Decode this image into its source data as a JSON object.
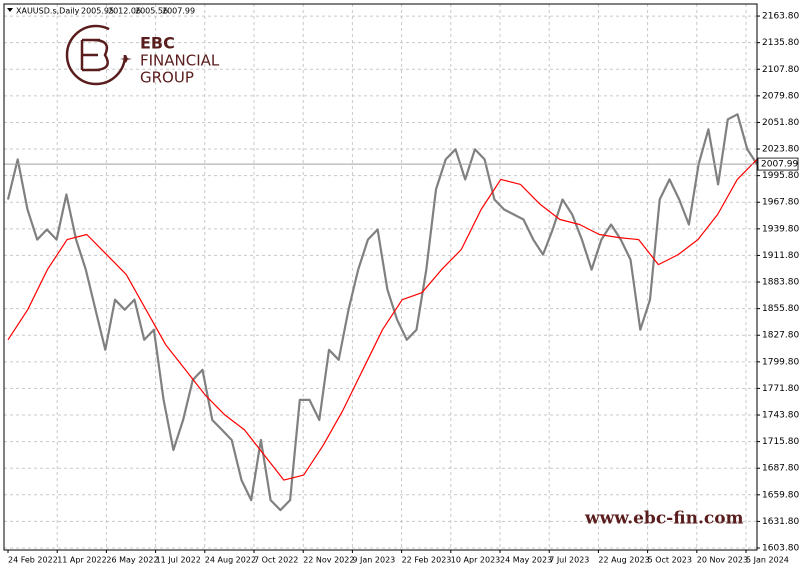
{
  "chart_data": {
    "type": "line",
    "title": "XAUUSD.s,Daily",
    "quote": {
      "open": 2005.95,
      "high": 2012.06,
      "low": 2005.56,
      "close": 2007.99
    },
    "current_price": {
      "value": 2007.99,
      "label": "2007.99"
    },
    "xtick_labels": [
      "24 Feb 2022",
      "11 Apr 2022",
      "26 May 2022",
      "11 Jul 2022",
      "24 Aug 2022",
      "7 Oct 2022",
      "22 Nov 2022",
      "9 Jan 2023",
      "22 Feb 2023",
      "10 Apr 2023",
      "24 May 2023",
      "7 Jul 2023",
      "22 Aug 2023",
      "5 Oct 2023",
      "20 Nov 2023",
      "5 Jan 2024"
    ],
    "ylim": [
      1601.7,
      2176.5
    ],
    "yticks": [
      {
        "value": 2163.8,
        "label": "2163.80"
      },
      {
        "value": 2135.8,
        "label": "2135.80"
      },
      {
        "value": 2107.8,
        "label": "2107.80"
      },
      {
        "value": 2079.8,
        "label": "2079.80"
      },
      {
        "value": 2051.8,
        "label": "2051.80"
      },
      {
        "value": 2023.8,
        "label": "2023.80"
      },
      {
        "value": 1995.8,
        "label": "1995.80"
      },
      {
        "value": 1967.8,
        "label": "1967.80"
      },
      {
        "value": 1939.8,
        "label": "1939.80"
      },
      {
        "value": 1911.8,
        "label": "1911.80"
      },
      {
        "value": 1883.8,
        "label": "1883.80"
      },
      {
        "value": 1855.8,
        "label": "1855.80"
      },
      {
        "value": 1827.8,
        "label": "1827.80"
      },
      {
        "value": 1799.8,
        "label": "1799.80"
      },
      {
        "value": 1771.8,
        "label": "1771.80"
      },
      {
        "value": 1743.8,
        "label": "1743.80"
      },
      {
        "value": 1715.8,
        "label": "1715.80"
      },
      {
        "value": 1687.8,
        "label": "1687.80"
      },
      {
        "value": 1659.8,
        "label": "1659.80"
      },
      {
        "value": 1631.8,
        "label": "1631.80"
      },
      {
        "value": 1603.8,
        "label": "1603.80"
      }
    ],
    "grid": true,
    "series": [
      {
        "color": "#808080",
        "values": [
          1970.7,
          2012.9,
          1960.2,
          1928.5,
          1939.1,
          1928.5,
          1976.0,
          1928.5,
          1896.9,
          1854.7,
          1812.5,
          1865.2,
          1854.7,
          1865.2,
          1823.0,
          1833.6,
          1759.7,
          1707.0,
          1738.6,
          1780.8,
          1791.4,
          1738.6,
          1728.1,
          1717.5,
          1675.3,
          1654.2,
          1717.5,
          1654.2,
          1643.7,
          1654.2,
          1759.7,
          1759.7,
          1738.6,
          1812.5,
          1801.9,
          1854.7,
          1896.9,
          1928.5,
          1939.1,
          1875.8,
          1844.1,
          1823.0,
          1833.6,
          1896.9,
          1981.3,
          2012.9,
          2023.5,
          1991.8,
          2023.5,
          2012.9,
          1970.7,
          1960.2,
          1954.9,
          1949.6,
          1928.5,
          1912.7,
          1939.1,
          1970.7,
          1954.9,
          1928.5,
          1896.9,
          1928.5,
          1944.4,
          1928.5,
          1907.4,
          1833.6,
          1865.2,
          1970.7,
          1991.8,
          1970.7,
          1944.4,
          2007.7,
          2044.6,
          1986.6,
          2055.1,
          2060.4,
          2023.5,
          2007.99
        ]
      },
      {
        "color": "#ff0000",
        "values": [
          1823.0,
          1854.7,
          1896.9,
          1928.5,
          1933.8,
          1912.7,
          1891.6,
          1854.7,
          1817.8,
          1791.4,
          1765.0,
          1743.9,
          1728.1,
          1701.7,
          1675.3,
          1680.6,
          1712.3,
          1749.2,
          1791.4,
          1833.6,
          1865.2,
          1872.6,
          1896.9,
          1918.0,
          1960.2,
          1991.8,
          1986.6,
          1965.5,
          1949.6,
          1944.4,
          1933.8,
          1930.6,
          1928.5,
          1902.2,
          1912.7,
          1928.5,
          1954.9,
          1991.8,
          2012.9
        ]
      }
    ]
  },
  "logo": {
    "line1": "EBC",
    "line2": "FINANCIAL",
    "line3": "GROUP"
  },
  "watermark": "www.ebc-fin.com"
}
